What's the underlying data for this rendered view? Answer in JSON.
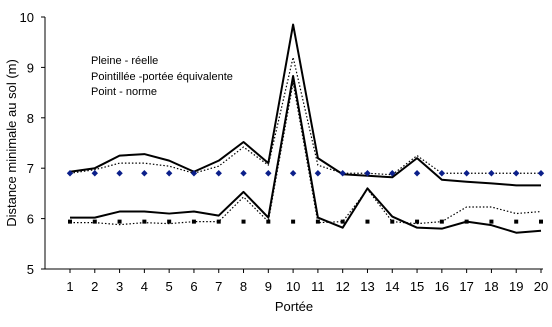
{
  "chart_data": {
    "type": "line",
    "title": "",
    "xlabel": "Portée",
    "ylabel": "Distance minimale au sol (m)",
    "x": [
      1,
      2,
      3,
      4,
      5,
      6,
      7,
      8,
      9,
      10,
      11,
      12,
      13,
      14,
      15,
      16,
      17,
      18,
      19,
      20
    ],
    "xlim": [
      1,
      20
    ],
    "ylim": [
      5,
      10
    ],
    "yticks": [
      5,
      6,
      7,
      8,
      9,
      10
    ],
    "grid": false,
    "legend_text": [
      "Pleine - réelle",
      "Pointillée -portée équivalente",
      "Point - norme"
    ],
    "series": [
      {
        "style": "solid",
        "color": "#000000",
        "values": [
          6.93,
          7.0,
          7.25,
          7.28,
          7.15,
          6.93,
          7.15,
          7.52,
          7.1,
          9.85,
          7.2,
          6.88,
          6.85,
          6.82,
          7.2,
          6.77,
          6.73,
          6.7,
          6.66,
          6.66
        ]
      },
      {
        "style": "solid",
        "color": "#000000",
        "values": [
          6.02,
          6.02,
          6.14,
          6.14,
          6.1,
          6.14,
          6.06,
          6.53,
          6.02,
          8.83,
          6.02,
          5.82,
          6.6,
          6.04,
          5.82,
          5.8,
          5.94,
          5.87,
          5.72,
          5.76
        ]
      },
      {
        "style": "dotted",
        "color": "#000000",
        "values": [
          6.9,
          6.97,
          7.1,
          7.1,
          7.04,
          6.9,
          7.04,
          7.42,
          7.06,
          9.2,
          7.06,
          6.9,
          6.9,
          6.87,
          7.25,
          6.9,
          6.9,
          6.9,
          6.9,
          6.9
        ]
      },
      {
        "style": "dotted",
        "color": "#000000",
        "values": [
          5.92,
          5.92,
          5.88,
          5.92,
          5.9,
          5.94,
          5.94,
          6.43,
          5.94,
          8.7,
          5.92,
          5.94,
          6.58,
          5.94,
          5.9,
          5.94,
          6.23,
          6.23,
          6.1,
          6.14
        ]
      },
      {
        "style": "markers",
        "color": "#0b1f8a",
        "marker": "diamond",
        "values": [
          6.9,
          6.9,
          6.9,
          6.9,
          6.9,
          6.9,
          6.9,
          6.9,
          6.9,
          6.9,
          6.9,
          6.9,
          6.9,
          6.9,
          6.9,
          6.9,
          6.9,
          6.9,
          6.9,
          6.9
        ]
      },
      {
        "style": "markers",
        "color": "#000000",
        "marker": "square",
        "values": [
          5.94,
          5.94,
          5.94,
          5.94,
          5.94,
          5.94,
          5.94,
          5.94,
          5.94,
          5.94,
          5.94,
          5.94,
          5.94,
          5.94,
          5.94,
          5.94,
          5.94,
          5.94,
          5.94,
          5.94
        ]
      }
    ]
  }
}
